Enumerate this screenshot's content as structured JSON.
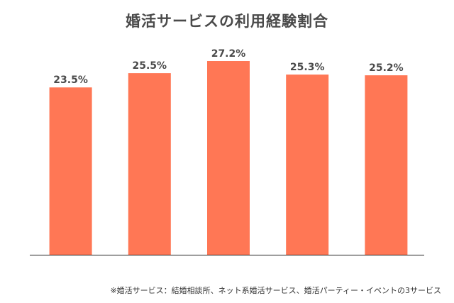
{
  "chart_data": {
    "type": "bar",
    "title": "婚活サービスの利用経験割合",
    "categories": [
      "",
      "",
      "",
      "",
      ""
    ],
    "values": [
      23.5,
      25.5,
      27.2,
      25.3,
      25.2
    ],
    "data_labels": [
      "23.5%",
      "25.5%",
      "27.2%",
      "25.3%",
      "25.2%"
    ],
    "ylim": [
      0,
      27.8
    ],
    "xlabel": "",
    "ylabel": "",
    "grid": false,
    "legend": "none",
    "bar_color": "#ff7755",
    "label_color": "#4a4a4a",
    "axis_color": "#222222"
  },
  "footnote": "※婚活サービス：結婚相談所、ネット系婚活サービス、婚活パーティー・イベントの3サービス"
}
